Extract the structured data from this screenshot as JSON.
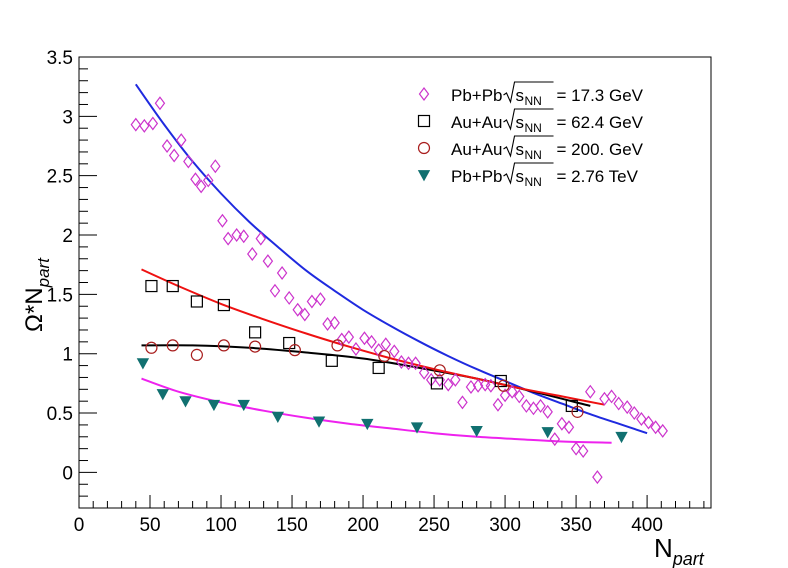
{
  "chart_data": {
    "type": "scatter",
    "title": "",
    "xlabel": {
      "main": "N",
      "sub": "part"
    },
    "ylabel": {
      "main": "Ω*N",
      "sub": "part"
    },
    "xlim": [
      0,
      445
    ],
    "ylim": [
      -0.3,
      3.5
    ],
    "x_major_ticks": [
      0,
      50,
      100,
      150,
      200,
      250,
      300,
      350,
      400
    ],
    "x_minor_step": 10,
    "y_major_ticks": [
      0,
      0.5,
      1,
      1.5,
      2,
      2.5,
      3,
      3.5
    ],
    "y_tick_labels": [
      "0",
      "0.5",
      "1",
      "1.5",
      "2",
      "2.5",
      "3",
      "3.5"
    ],
    "y_minor_step": 0.1,
    "legend_position": "top-right",
    "series": [
      {
        "name": "Pb+Pb 17.3 GeV",
        "legend": {
          "system": "Pb+Pb",
          "sqrt": "s",
          "sub": "NN",
          "energy": "= 17.3 GeV"
        },
        "marker": "open-diamond",
        "color": "#cc33cc",
        "x": [
          40,
          46,
          52,
          57,
          62,
          67,
          72,
          77,
          82,
          86,
          91,
          96,
          101,
          105,
          111,
          116,
          122,
          128,
          133,
          138,
          143,
          148,
          154,
          159,
          164,
          170,
          175,
          180,
          185,
          190,
          195,
          201,
          206,
          211,
          216,
          222,
          227,
          232,
          237,
          243,
          248,
          254,
          260,
          265,
          270,
          276,
          281,
          286,
          290,
          295,
          300,
          305,
          310,
          315,
          320,
          325,
          330,
          335,
          340,
          345,
          350,
          355,
          360,
          365,
          370,
          375,
          380,
          386,
          391,
          396,
          401,
          406,
          411
        ],
        "y": [
          2.93,
          2.92,
          2.94,
          3.11,
          2.75,
          2.67,
          2.8,
          2.62,
          2.47,
          2.41,
          2.46,
          2.58,
          2.12,
          1.97,
          2.0,
          1.99,
          1.84,
          1.97,
          1.78,
          1.53,
          1.68,
          1.47,
          1.37,
          1.33,
          1.44,
          1.46,
          1.25,
          1.26,
          1.12,
          1.14,
          1.04,
          1.13,
          1.1,
          1.03,
          1.08,
          1.02,
          0.93,
          0.92,
          0.92,
          0.84,
          0.78,
          0.78,
          0.74,
          0.78,
          0.59,
          0.72,
          0.73,
          0.74,
          0.73,
          0.57,
          0.65,
          0.68,
          0.64,
          0.56,
          0.54,
          0.56,
          0.51,
          0.28,
          0.41,
          0.38,
          0.2,
          0.18,
          0.68,
          -0.04,
          0.62,
          0.64,
          0.58,
          0.55,
          0.5,
          0.45,
          0.42,
          0.38,
          0.35
        ],
        "fit": {
          "color": "#1f2adf",
          "x": [
            40,
            60,
            80,
            100,
            120,
            140,
            160,
            180,
            200,
            220,
            240,
            260,
            280,
            300,
            320,
            340,
            360,
            380,
            400
          ],
          "y": [
            3.27,
            2.93,
            2.62,
            2.35,
            2.11,
            1.9,
            1.7,
            1.53,
            1.37,
            1.23,
            1.1,
            0.98,
            0.87,
            0.77,
            0.67,
            0.58,
            0.49,
            0.41,
            0.33
          ]
        }
      },
      {
        "name": "Au+Au 62.4 GeV",
        "legend": {
          "system": "Au+Au",
          "sqrt": "s",
          "sub": "NN",
          "energy": "= 62.4 GeV"
        },
        "marker": "open-square",
        "color": "#000000",
        "x": [
          51,
          66,
          83,
          102,
          124,
          148,
          178,
          211,
          252,
          297,
          347
        ],
        "y": [
          1.57,
          1.57,
          1.44,
          1.41,
          1.18,
          1.09,
          0.94,
          0.88,
          0.75,
          0.77,
          0.56
        ],
        "fit": {
          "color": "#000000",
          "x": [
            44,
            80,
            120,
            160,
            200,
            240,
            280,
            320,
            360
          ],
          "y": [
            1.07,
            1.07,
            1.05,
            1.01,
            0.96,
            0.88,
            0.79,
            0.68,
            0.56
          ]
        }
      },
      {
        "name": "Au+Au 200 GeV",
        "legend": {
          "system": "Au+Au",
          "sqrt": "s",
          "sub": "NN",
          "energy": "= 200. GeV"
        },
        "marker": "open-circle",
        "color": "#a81c1c",
        "x": [
          51,
          66,
          83,
          102,
          124,
          152,
          182,
          215,
          254,
          299,
          351
        ],
        "y": [
          1.05,
          1.07,
          0.99,
          1.07,
          1.06,
          1.03,
          1.07,
          0.98,
          0.86,
          0.73,
          0.51
        ],
        "fit": {
          "color": "#ee1111",
          "x": [
            44,
            70,
            100,
            130,
            160,
            190,
            220,
            250,
            280,
            310,
            340,
            370
          ],
          "y": [
            1.71,
            1.57,
            1.42,
            1.29,
            1.17,
            1.06,
            0.96,
            0.87,
            0.79,
            0.71,
            0.64,
            0.57
          ]
        }
      },
      {
        "name": "Pb+Pb 2.76 TeV",
        "legend": {
          "system": "Pb+Pb",
          "sqrt": "s",
          "sub": "NN",
          "energy": "= 2.76 TeV"
        },
        "marker": "filled-triangle-down",
        "color": "#117070",
        "x": [
          45,
          59,
          75,
          95,
          116,
          140,
          169,
          203,
          238,
          280,
          330,
          382
        ],
        "y": [
          0.92,
          0.66,
          0.6,
          0.57,
          0.57,
          0.47,
          0.43,
          0.41,
          0.38,
          0.35,
          0.34,
          0.3
        ],
        "fit": {
          "color": "#ee22ee",
          "x": [
            44,
            70,
            100,
            130,
            160,
            190,
            220,
            250,
            280,
            310,
            340,
            375
          ],
          "y": [
            0.79,
            0.68,
            0.59,
            0.52,
            0.46,
            0.41,
            0.37,
            0.33,
            0.3,
            0.28,
            0.26,
            0.25
          ]
        }
      }
    ]
  }
}
